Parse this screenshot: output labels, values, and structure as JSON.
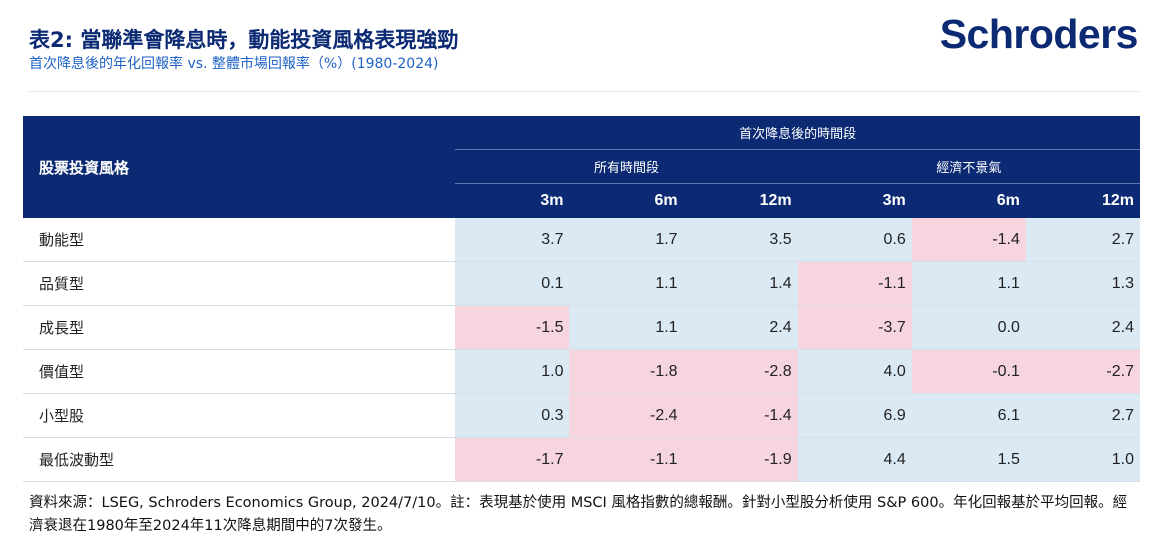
{
  "header": {
    "title": "表2: 當聯準會降息時，動能投資風格表現強勁",
    "subtitle": "首次降息後的年化回報率 vs. 整體市場回報率（%）(1980-2024)",
    "logo": "Schroders"
  },
  "table": {
    "corner_label": "股票投資風格",
    "period_group": "首次降息後的時間段",
    "groups": [
      "所有時間段",
      "經濟不景氣"
    ],
    "columns": [
      "3m",
      "6m",
      "12m",
      "3m",
      "6m",
      "12m"
    ],
    "rows": [
      {
        "label": "動能型",
        "values": [
          "3.7",
          "1.7",
          "3.5",
          "0.6",
          "-1.4",
          "2.7"
        ]
      },
      {
        "label": "品質型",
        "values": [
          "0.1",
          "1.1",
          "1.4",
          "-1.1",
          "1.1",
          "1.3"
        ]
      },
      {
        "label": "成長型",
        "values": [
          "-1.5",
          "1.1",
          "2.4",
          "-3.7",
          "0.0",
          "2.4"
        ]
      },
      {
        "label": "價值型",
        "values": [
          "1.0",
          "-1.8",
          "-2.8",
          "4.0",
          "-0.1",
          "-2.7"
        ]
      },
      {
        "label": "小型股",
        "values": [
          "0.3",
          "-2.4",
          "-1.4",
          "6.9",
          "6.1",
          "2.7"
        ]
      },
      {
        "label": "最低波動型",
        "values": [
          "-1.7",
          "-1.1",
          "-1.9",
          "4.4",
          "1.5",
          "1.0"
        ]
      }
    ],
    "colors": {
      "header_bg": "#0b2a73",
      "positive_bg": "#dbe9f5",
      "negative_bg": "#f7d5de"
    }
  },
  "footnote": "資料來源：LSEG, Schroders Economics Group, 2024/7/10。註：表現基於使用 MSCI 風格指數的總報酬。針對小型股分析使用 S&P 600。年化回報基於平均回報。經濟衰退在1980年至2024年11次降息期間中的7次發生。"
}
